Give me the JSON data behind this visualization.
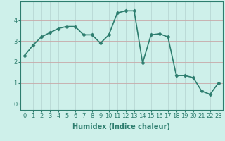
{
  "x": [
    0,
    1,
    2,
    3,
    4,
    5,
    6,
    7,
    8,
    9,
    10,
    11,
    12,
    13,
    14,
    15,
    16,
    17,
    18,
    19,
    20,
    21,
    22,
    23
  ],
  "y": [
    2.3,
    2.8,
    3.2,
    3.4,
    3.6,
    3.7,
    3.7,
    3.3,
    3.3,
    2.9,
    3.3,
    4.35,
    4.45,
    4.45,
    1.95,
    3.3,
    3.35,
    3.2,
    1.35,
    1.35,
    1.25,
    0.6,
    0.45,
    1.0
  ],
  "line_color": "#2d7d6e",
  "marker": "D",
  "marker_size": 2.5,
  "bg_color": "#cef0ea",
  "grid_major_color": "#b8ddd8",
  "grid_minor_color": "#d6eeeb",
  "xlabel": "Humidex (Indice chaleur)",
  "xlim": [
    -0.5,
    23.5
  ],
  "ylim": [
    -0.3,
    4.9
  ],
  "yticks": [
    0,
    1,
    2,
    3,
    4
  ],
  "xticks": [
    0,
    1,
    2,
    3,
    4,
    5,
    6,
    7,
    8,
    9,
    10,
    11,
    12,
    13,
    14,
    15,
    16,
    17,
    18,
    19,
    20,
    21,
    22,
    23
  ],
  "xlabel_fontsize": 7,
  "tick_fontsize": 6,
  "line_width": 1.2
}
